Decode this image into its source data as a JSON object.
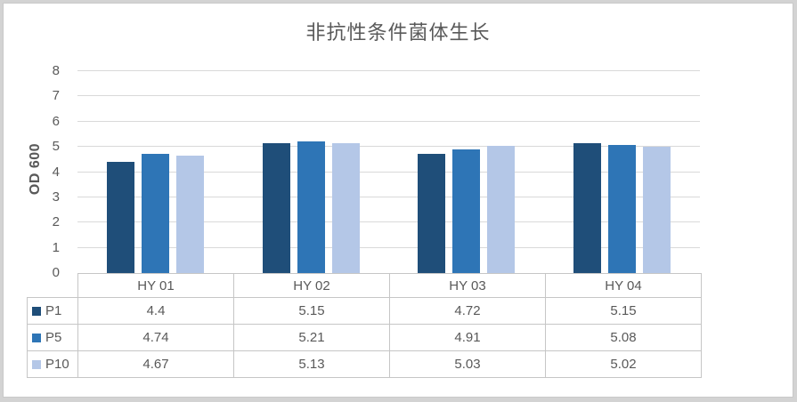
{
  "chart_data": {
    "type": "bar",
    "title": "非抗性条件菌体生长",
    "ylabel": "OD 600",
    "xlabel": "",
    "categories": [
      "HY 01",
      "HY 02",
      "HY 03",
      "HY 04"
    ],
    "series": [
      {
        "name": "P1",
        "color": "#1F4E79",
        "values": [
          4.4,
          5.15,
          4.72,
          5.15
        ]
      },
      {
        "name": "P5",
        "color": "#2E75B6",
        "values": [
          4.74,
          5.21,
          4.91,
          5.08
        ]
      },
      {
        "name": "P10",
        "color": "#B4C7E7",
        "values": [
          4.67,
          5.13,
          5.03,
          5.02
        ]
      }
    ],
    "ylim": [
      0,
      8
    ],
    "yticks": [
      0,
      1,
      2,
      3,
      4,
      5,
      6,
      7,
      8
    ],
    "grid": true,
    "legend_position": "data-table-left-column",
    "colors": {
      "text": "#595959",
      "gridline": "#D9D9D9",
      "table_border": "#C6C6C6",
      "background": "#FFFFFF",
      "frame_border": "#D3D3D3"
    }
  }
}
